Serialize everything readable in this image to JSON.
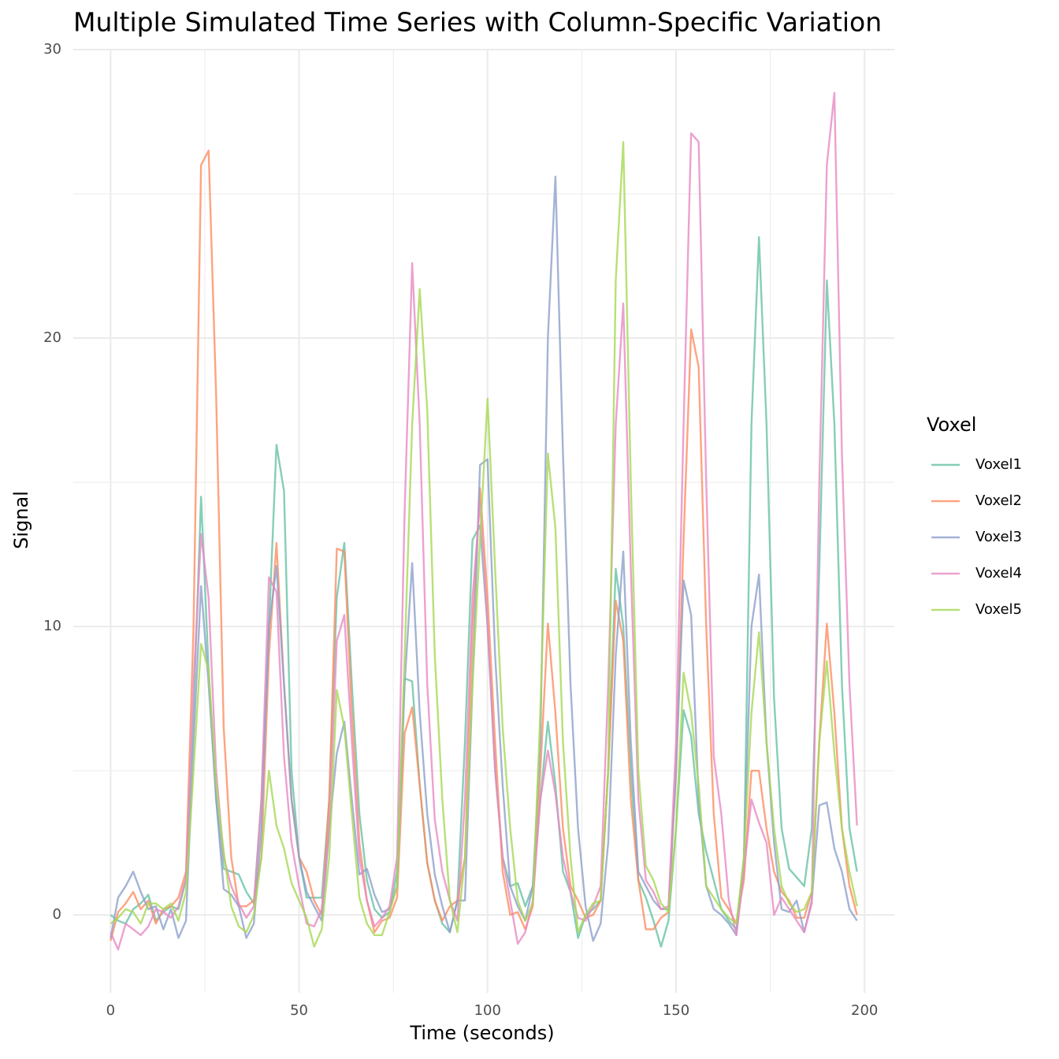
{
  "chart_data": {
    "type": "line",
    "title": "Multiple Simulated Time Series with Column-Specific Variation",
    "x_label": "Time (seconds)",
    "y_label": "Signal",
    "legend_title": "Voxel",
    "x": [
      0,
      2,
      4,
      6,
      8,
      10,
      12,
      14,
      16,
      18,
      20,
      22,
      24,
      26,
      28,
      30,
      32,
      34,
      36,
      38,
      40,
      42,
      44,
      46,
      48,
      50,
      52,
      54,
      56,
      58,
      60,
      62,
      64,
      66,
      68,
      70,
      72,
      74,
      76,
      78,
      80,
      82,
      84,
      86,
      88,
      90,
      92,
      94,
      96,
      98,
      100,
      102,
      104,
      106,
      108,
      110,
      112,
      114,
      116,
      118,
      120,
      122,
      124,
      126,
      128,
      130,
      132,
      134,
      136,
      138,
      140,
      142,
      144,
      146,
      148,
      150,
      152,
      154,
      156,
      158,
      160,
      162,
      164,
      166,
      168,
      170,
      172,
      174,
      176,
      178,
      180,
      182,
      184,
      186,
      188,
      190,
      192,
      194,
      196,
      198
    ],
    "series": [
      {
        "name": "Voxel1",
        "color": "#66c2a5",
        "values": [
          0,
          -0.2,
          -0.3,
          0.2,
          0.4,
          0.7,
          -0.2,
          0.1,
          0.3,
          0.2,
          1.2,
          7,
          14.5,
          8.5,
          4,
          1.6,
          1.5,
          1.4,
          0.8,
          0.4,
          4,
          10,
          16.3,
          14.7,
          5,
          2,
          0.6,
          0.6,
          0.6,
          4,
          11,
          12.9,
          8,
          3.5,
          1.2,
          0.2,
          -0.1,
          0.1,
          1.5,
          8.2,
          8.1,
          4.5,
          1.8,
          0.5,
          -0.3,
          -0.6,
          0.5,
          6,
          13,
          13.5,
          10,
          5,
          2,
          1,
          1.1,
          0.3,
          1,
          4,
          6.7,
          4.5,
          1.5,
          0.8,
          -0.8,
          0,
          0.2,
          0.5,
          5,
          12,
          10,
          5,
          1.2,
          0.6,
          -0.2,
          -1.1,
          -0.2,
          3,
          7.1,
          6.2,
          3.5,
          2.2,
          1.2,
          0.2,
          -0.2,
          -0.5,
          1.8,
          17,
          23.5,
          17,
          7.5,
          3,
          1.6,
          1.3,
          1,
          3,
          12,
          22,
          17,
          8,
          3,
          1.5
        ]
      },
      {
        "name": "Voxel2",
        "color": "#fc8d62",
        "values": [
          -0.9,
          0.1,
          0.4,
          0.8,
          0.2,
          0.5,
          -0.3,
          0.2,
          0.3,
          0.6,
          1.5,
          10,
          26,
          26.5,
          18,
          6.5,
          2,
          0.3,
          0.3,
          0.5,
          2,
          9,
          12.9,
          8,
          4,
          2,
          1.5,
          0.5,
          0,
          4,
          12.7,
          12.6,
          7,
          2.5,
          0.5,
          -0.6,
          -0.2,
          -0.1,
          0.6,
          6.3,
          7.2,
          4.5,
          1.8,
          0.5,
          -0.2,
          0.3,
          0.5,
          2,
          10,
          14.8,
          11,
          6,
          1.5,
          0,
          0.1,
          -0.5,
          0.3,
          5,
          10.1,
          7,
          3,
          1,
          0.5,
          -0.1,
          0,
          0.5,
          5,
          10.9,
          9.5,
          4,
          1.2,
          -0.5,
          -0.5,
          -0.1,
          0.1,
          5,
          13,
          20.3,
          19,
          10,
          3.5,
          0.6,
          0.2,
          -0.3,
          1.2,
          5,
          5,
          3,
          1.5,
          0.8,
          0.5,
          -0.1,
          -0.1,
          0.8,
          6,
          10.1,
          7,
          3,
          1,
          0
        ]
      },
      {
        "name": "Voxel3",
        "color": "#8da0cb",
        "values": [
          -0.8,
          0.6,
          1,
          1.5,
          0.8,
          0.2,
          0.3,
          -0.5,
          0.2,
          -0.8,
          -0.2,
          6,
          11.4,
          8,
          4,
          0.9,
          0.7,
          0.3,
          -0.8,
          -0.3,
          3,
          10,
          12.1,
          8,
          4,
          2,
          0.8,
          0.3,
          -0.2,
          3,
          5.6,
          6.7,
          4,
          1.4,
          1.6,
          0.7,
          0.1,
          0.2,
          1,
          8,
          12.2,
          7,
          3.5,
          1.4,
          0.3,
          -0.6,
          0.5,
          0.5,
          8,
          15.6,
          15.8,
          9,
          4.5,
          1,
          0.3,
          -0.2,
          1,
          6,
          20,
          25.6,
          16,
          8,
          3,
          0.3,
          -0.9,
          -0.3,
          2.5,
          9,
          12.6,
          6,
          1.5,
          1,
          0.5,
          0.2,
          0.2,
          5,
          11.6,
          10.4,
          4,
          1,
          0.2,
          0,
          -0.3,
          -0.7,
          2,
          10,
          11.8,
          6,
          2.5,
          0.2,
          0.1,
          0.5,
          -0.6,
          0.5,
          3.8,
          3.9,
          2.3,
          1.5,
          0.2,
          -0.2
        ]
      },
      {
        "name": "Voxel4",
        "color": "#e78ac3",
        "values": [
          -0.6,
          -1.2,
          -0.3,
          -0.5,
          -0.7,
          -0.4,
          0.2,
          0.1,
          -0.1,
          0.3,
          1.3,
          8,
          13.2,
          11,
          5,
          2,
          1,
          0.4,
          -0.1,
          0.3,
          4,
          11.7,
          11.2,
          5.5,
          2.5,
          1,
          -0.3,
          -0.4,
          0.2,
          3,
          9.5,
          10.4,
          6,
          2,
          0.5,
          -0.4,
          -0.1,
          0.3,
          2,
          14,
          22.6,
          17,
          8,
          3.3,
          1.5,
          0.5,
          -0.2,
          4,
          11,
          14.3,
          10,
          5,
          2,
          0.5,
          -1,
          -0.6,
          0.5,
          4,
          5.7,
          4.2,
          2,
          0.8,
          -0.1,
          -0.2,
          0.3,
          1,
          8,
          17,
          21.2,
          12,
          4,
          1.2,
          0.8,
          0.2,
          0.3,
          6,
          17,
          27.1,
          26.8,
          15,
          5.5,
          3.5,
          0.5,
          -0.7,
          1.5,
          4,
          3.2,
          2.5,
          0,
          0.6,
          0.2,
          -0.2,
          -0.6,
          0.4,
          15,
          26,
          28.5,
          16,
          8,
          3.1
        ]
      },
      {
        "name": "Voxel5",
        "color": "#a6d854",
        "values": [
          -0.3,
          -0.1,
          0.2,
          0.1,
          -0.3,
          0.4,
          0.4,
          0.2,
          0.4,
          -0.2,
          0.8,
          5,
          9.4,
          8.5,
          4.5,
          2.2,
          0.3,
          -0.4,
          -0.6,
          0,
          2,
          5,
          3.1,
          2.3,
          1.1,
          0.5,
          -0.1,
          -1.1,
          -0.5,
          2,
          7.8,
          6.5,
          3.5,
          0.6,
          -0.3,
          -0.7,
          -0.7,
          0.1,
          1,
          9,
          17,
          21.7,
          17.5,
          9,
          4,
          0.5,
          -0.6,
          2,
          8,
          13,
          17.9,
          12,
          6.5,
          3,
          0.5,
          -0.2,
          0.4,
          7,
          16,
          13.4,
          6,
          2,
          -0.6,
          0,
          0.4,
          0.5,
          5,
          22,
          26.8,
          15,
          5,
          1.7,
          1.2,
          0.4,
          0.1,
          3,
          8.4,
          7,
          4.5,
          1,
          0.6,
          0.2,
          -0.1,
          -0.3,
          2,
          7,
          9.8,
          6,
          3,
          1,
          0.4,
          0.1,
          0.2,
          0.8,
          6,
          8.8,
          5.6,
          3,
          1.5,
          0.3
        ]
      }
    ],
    "xlim": [
      -9.9,
      207.9
    ],
    "ylim": [
      -2.7,
      30.0
    ],
    "xticks": [
      0,
      50,
      100,
      150,
      200
    ],
    "yticks": [
      0,
      10,
      20,
      30
    ],
    "x_minor_ticks": [
      25,
      75,
      125,
      175
    ],
    "y_minor_ticks": [
      5,
      15,
      25
    ],
    "grid": true
  }
}
